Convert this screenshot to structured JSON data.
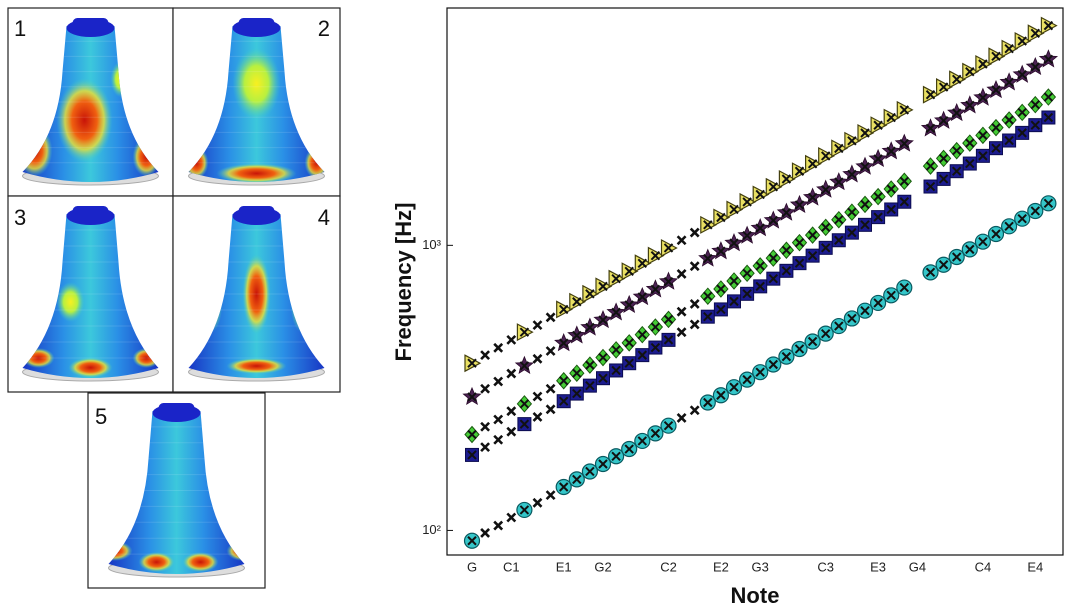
{
  "panels": [
    "1",
    "2",
    "3",
    "4",
    "5"
  ],
  "chart_data": {
    "type": "scatter",
    "y_label": "Frequency [Hz]",
    "x_label": "Note",
    "categories": [
      "G",
      null,
      null,
      "C1",
      null,
      null,
      null,
      "E1",
      null,
      null,
      "G2",
      null,
      null,
      null,
      null,
      "C2",
      null,
      null,
      null,
      "E2",
      null,
      null,
      "G3",
      null,
      null,
      null,
      null,
      "C3",
      null,
      null,
      null,
      "E3",
      null,
      null,
      "G4",
      null,
      null,
      null,
      null,
      "C4",
      null,
      null,
      null,
      "E4",
      null
    ],
    "y_scale": "log",
    "ylim": [
      82,
      6800
    ],
    "yticks": [
      {
        "value": 100,
        "label": "10²"
      },
      {
        "value": 1000,
        "label": "10³"
      }
    ],
    "grid": false,
    "series": [
      {
        "marker": "circle",
        "color": "#35c6c9",
        "values": [
          92,
          null,
          null,
          null,
          118,
          null,
          null,
          142,
          151,
          161,
          171,
          182,
          193,
          206,
          219,
          233,
          null,
          null,
          281,
          298,
          318,
          338,
          359,
          382,
          407,
          433,
          460,
          490,
          521,
          554,
          590,
          628,
          668,
          711,
          null,
          804,
          855,
          910,
          968,
          1030,
          1096,
          1166,
          1240,
          1320,
          1404
        ]
      },
      {
        "marker": "x",
        "color": "#111111",
        "values": [
          null,
          98,
          104,
          111,
          null,
          125,
          133,
          null,
          null,
          null,
          null,
          null,
          null,
          null,
          null,
          null,
          248,
          264,
          null,
          null,
          null,
          null,
          null,
          null,
          null,
          null,
          null,
          null,
          null,
          null,
          null,
          null,
          null,
          null,
          null,
          null,
          null,
          null,
          null,
          null,
          null,
          null,
          null,
          null,
          null
        ]
      },
      {
        "marker": "square",
        "color": "#1c1c8e",
        "values": [
          184,
          null,
          null,
          null,
          236,
          null,
          null,
          284,
          302,
          322,
          342,
          364,
          386,
          412,
          438,
          466,
          null,
          null,
          562,
          596,
          636,
          676,
          718,
          764,
          814,
          866,
          920,
          980,
          1042,
          1108,
          1180,
          1256,
          1336,
          1422,
          null,
          1608,
          1710,
          1820,
          1936,
          2060,
          2192,
          2332,
          2480,
          2640,
          2808
        ]
      },
      {
        "marker": "x",
        "color": "#111111",
        "values": [
          null,
          196,
          208,
          222,
          null,
          250,
          266,
          null,
          null,
          null,
          null,
          null,
          null,
          null,
          null,
          null,
          496,
          528,
          null,
          null,
          null,
          null,
          null,
          null,
          null,
          null,
          null,
          null,
          null,
          null,
          null,
          null,
          null,
          null,
          null,
          null,
          null,
          null,
          null,
          null,
          null,
          null,
          null,
          null,
          null
        ]
      },
      {
        "marker": "diamond",
        "color": "#45cc36",
        "values": [
          217,
          null,
          null,
          null,
          278,
          null,
          null,
          335,
          356,
          380,
          404,
          430,
          455,
          486,
          517,
          550,
          null,
          null,
          663,
          703,
          750,
          798,
          847,
          902,
          961,
          1022,
          1086,
          1156,
          1230,
          1307,
          1392,
          1482,
          1576,
          1678,
          null,
          1897,
          2018,
          2148,
          2284,
          2431,
          2587,
          2752,
          2926,
          3115,
          3313
        ]
      },
      {
        "marker": "x",
        "color": "#111111",
        "values": [
          null,
          231,
          245,
          262,
          null,
          295,
          314,
          null,
          null,
          null,
          null,
          null,
          null,
          null,
          null,
          null,
          585,
          623,
          null,
          null,
          null,
          null,
          null,
          null,
          null,
          null,
          null,
          null,
          null,
          null,
          null,
          null,
          null,
          null,
          null,
          null,
          null,
          null,
          null,
          null,
          null,
          null,
          null,
          null,
          null
        ]
      },
      {
        "marker": "star",
        "color": "#4a2352",
        "values": [
          294,
          null,
          null,
          null,
          378,
          null,
          null,
          454,
          483,
          515,
          547,
          582,
          618,
          659,
          701,
          746,
          null,
          null,
          899,
          954,
          1018,
          1082,
          1149,
          1222,
          1302,
          1386,
          1472,
          1568,
          1667,
          1773,
          1888,
          2010,
          2138,
          2275,
          null,
          2573,
          2736,
          2912,
          3098,
          3296,
          3507,
          3731,
          3968,
          4224,
          4493
        ]
      },
      {
        "marker": "x",
        "color": "#111111",
        "values": [
          null,
          314,
          333,
          355,
          null,
          400,
          426,
          null,
          null,
          null,
          null,
          null,
          null,
          null,
          null,
          null,
          794,
          845,
          null,
          null,
          null,
          null,
          null,
          null,
          null,
          null,
          null,
          null,
          null,
          null,
          null,
          null,
          null,
          null,
          null,
          null,
          null,
          null,
          null,
          null,
          null,
          null,
          null,
          null,
          null
        ]
      },
      {
        "marker": "triangle",
        "color": "#e9e063",
        "values": [
          386,
          null,
          null,
          null,
          496,
          null,
          null,
          596,
          634,
          676,
          718,
          764,
          811,
          865,
          920,
          979,
          null,
          null,
          1180,
          1252,
          1336,
          1420,
          1508,
          1604,
          1709,
          1819,
          1932,
          2058,
          2188,
          2327,
          2478,
          2638,
          2806,
          2986,
          null,
          3377,
          3591,
          3822,
          4066,
          4326,
          4603,
          4897,
          5208,
          5544,
          5897
        ]
      },
      {
        "marker": "x",
        "color": "#111111",
        "values": [
          null,
          412,
          437,
          466,
          null,
          525,
          559,
          null,
          null,
          null,
          null,
          null,
          null,
          null,
          null,
          null,
          1042,
          1109,
          null,
          null,
          null,
          null,
          null,
          null,
          null,
          null,
          null,
          null,
          null,
          null,
          null,
          null,
          null,
          null,
          null,
          null,
          null,
          null,
          null,
          null,
          null,
          null,
          null,
          null
        ]
      }
    ]
  }
}
